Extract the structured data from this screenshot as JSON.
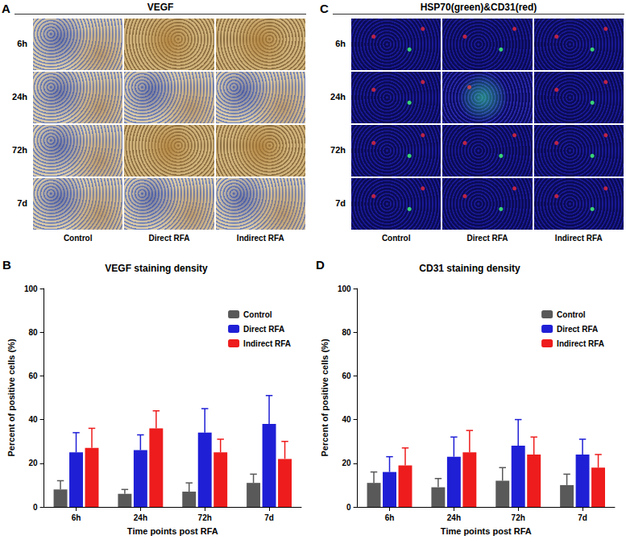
{
  "figure": {
    "panels": [
      {
        "panel_label": "A",
        "title": "VEGF",
        "style": "ihc",
        "rows": [
          "6h",
          "24h",
          "72h",
          "7d"
        ],
        "columns": [
          "Control",
          "Direct RFA",
          "Indirect RFA"
        ]
      },
      {
        "panel_label": "C",
        "title": "HSP70(green)&CD31(red)",
        "style": "fluorescence",
        "rows": [
          "6h",
          "24h",
          "72h",
          "7d"
        ],
        "columns": [
          "Control",
          "Direct RFA",
          "Indirect RFA"
        ]
      }
    ]
  },
  "chart_data": [
    {
      "panel_label": "B",
      "type": "bar",
      "title": "VEGF staining density",
      "x_label": "Time points post RFA",
      "y_label": "Percent of positive cells (%)",
      "categories": [
        "6h",
        "24h",
        "72h",
        "7d"
      ],
      "series": [
        {
          "name": "Control",
          "color": "#595959",
          "values": [
            8,
            6,
            7,
            11
          ],
          "errors": [
            4,
            2,
            4,
            4
          ]
        },
        {
          "name": "Direct RFA",
          "color": "#1f1fd6",
          "values": [
            25,
            26,
            34,
            38
          ],
          "errors": [
            9,
            7,
            11,
            13
          ]
        },
        {
          "name": "Indirect RFA",
          "color": "#ee1c1c",
          "values": [
            27,
            36,
            25,
            22
          ],
          "errors": [
            9,
            8,
            6,
            8
          ]
        }
      ],
      "ylim": [
        0,
        100
      ],
      "yticks": [
        0,
        20,
        40,
        60,
        80,
        100
      ],
      "grid": false,
      "legend": "upper right"
    },
    {
      "panel_label": "D",
      "type": "bar",
      "title": "CD31 staining density",
      "x_label": "Time points post RFA",
      "y_label": "Percent of positive cells (%)",
      "categories": [
        "6h",
        "24h",
        "72h",
        "7d"
      ],
      "series": [
        {
          "name": "Control",
          "color": "#595959",
          "values": [
            11,
            9,
            12,
            10
          ],
          "errors": [
            5,
            4,
            6,
            5
          ]
        },
        {
          "name": "Direct RFA",
          "color": "#1f1fd6",
          "values": [
            16,
            23,
            28,
            24
          ],
          "errors": [
            7,
            9,
            12,
            7
          ]
        },
        {
          "name": "Indirect RFA",
          "color": "#ee1c1c",
          "values": [
            19,
            25,
            24,
            18
          ],
          "errors": [
            8,
            10,
            8,
            6
          ]
        }
      ],
      "ylim": [
        0,
        100
      ],
      "yticks": [
        0,
        20,
        40,
        60,
        80,
        100
      ],
      "grid": false,
      "legend": "upper right"
    }
  ]
}
